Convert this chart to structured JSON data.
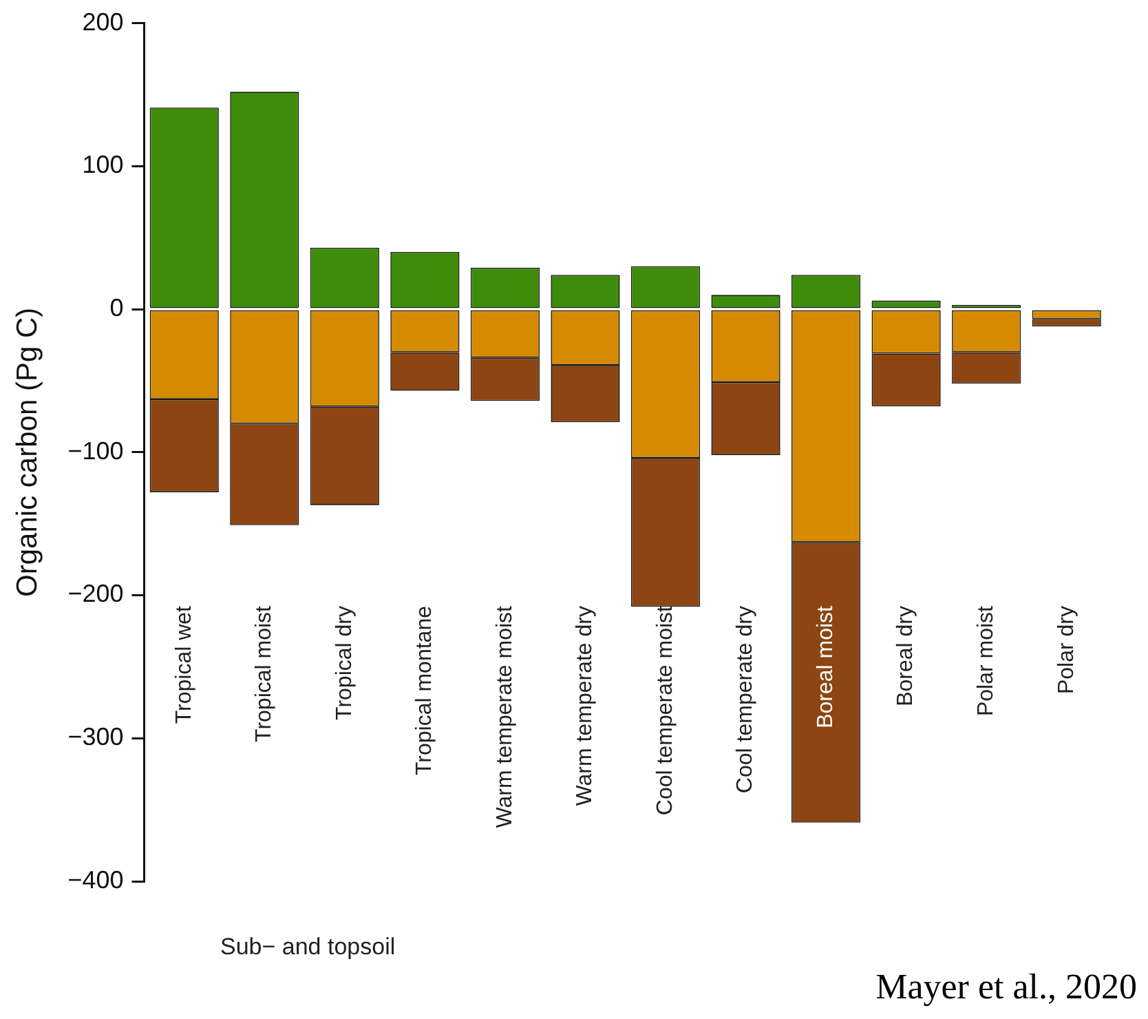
{
  "chart_data": {
    "type": "bar",
    "stacked": true,
    "ylabel": "Organic carbon (Pg C)",
    "categories": [
      "Tropical wet",
      "Tropical moist",
      "Tropical dry",
      "Tropical montane",
      "Warm temperate moist",
      "Warm temperate dry",
      "Cool temperate moist",
      "Cool temperate dry",
      "Boreal moist",
      "Boreal dry",
      "Polar moist",
      "Polar dry"
    ],
    "series": [
      {
        "color": "#3f8c0a",
        "values": [
          141,
          152,
          43,
          40,
          29,
          24,
          30,
          10,
          24,
          6,
          3,
          null
        ]
      },
      {
        "color": "#d68a00",
        "values": [
          -63,
          -80,
          -68,
          -30,
          -34,
          -39,
          -104,
          -51,
          -163,
          -31,
          -30,
          -7
        ]
      },
      {
        "color": "#8c4513",
        "values": [
          -65,
          -71,
          -69,
          -27,
          -30,
          -40,
          -104,
          -51,
          -196,
          -37,
          -22,
          -5
        ]
      }
    ],
    "ylim": [
      -400,
      200
    ],
    "yticks": [
      -400,
      -300,
      -200,
      -100,
      0,
      100,
      200
    ],
    "grid": false,
    "legend": false,
    "annotations": [
      "Sub− and topsoil",
      "Mayer et al., 2020"
    ]
  }
}
